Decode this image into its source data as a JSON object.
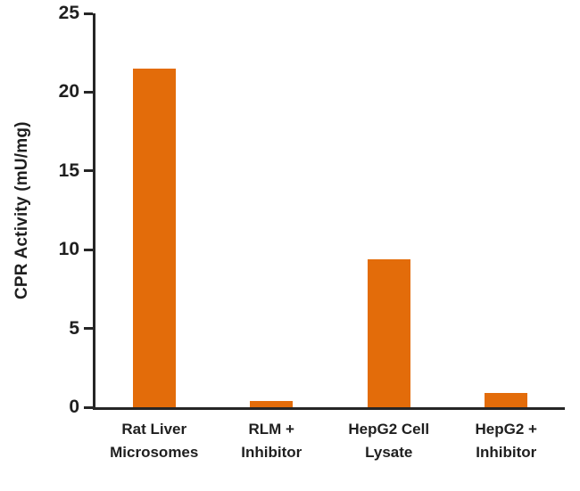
{
  "chart_data": {
    "type": "bar",
    "title": "",
    "xlabel": "",
    "ylabel": "CPR Activity (mU/mg)",
    "ylim": [
      0,
      25
    ],
    "yticks": [
      0,
      5,
      10,
      15,
      20,
      25
    ],
    "categories": [
      "Rat Liver\nMicrosomes",
      "RLM +\nInhibitor",
      "HepG2 Cell\nLysate",
      "HepG2 +\nInhibitor"
    ],
    "values": [
      21.5,
      0.4,
      9.4,
      0.9
    ],
    "bar_color": "#E36C0A",
    "axis_color": "#262626",
    "text_color": "#1f1f1f",
    "grid": false,
    "legend": false,
    "background": "#ffffff"
  }
}
